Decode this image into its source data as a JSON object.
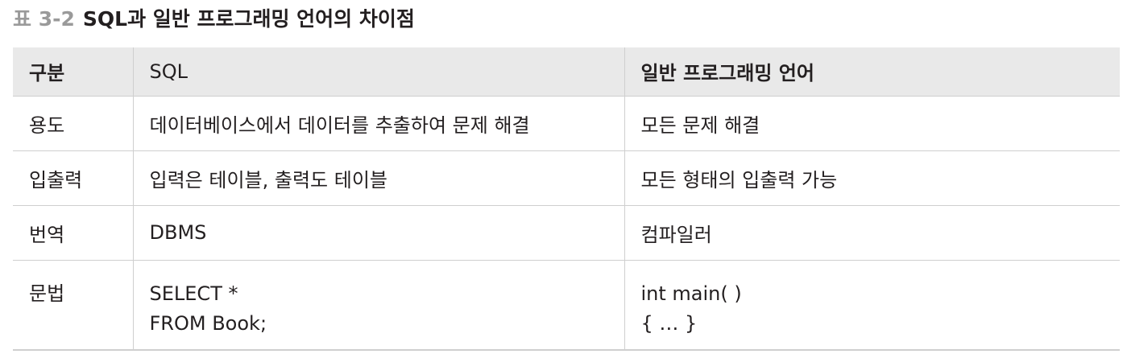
{
  "caption": {
    "number": "표 3-2",
    "title": "SQL과 일반 프로그래밍 언어의 차이점"
  },
  "table": {
    "headers": [
      "구분",
      "SQL",
      "일반 프로그래밍 언어"
    ],
    "rows": [
      {
        "label": "용도",
        "sql": "데이터베이스에서 데이터를 추출하여 문제 해결",
        "general": "모든 문제 해결"
      },
      {
        "label": "입출력",
        "sql": "입력은 테이블, 출력도 테이블",
        "general": "모든 형태의 입출력 가능"
      },
      {
        "label": "번역",
        "sql": "DBMS",
        "general": "컴파일러"
      },
      {
        "label": "문법",
        "sql": [
          "SELECT *",
          "FROM Book;"
        ],
        "general": [
          "int main( )",
          "{ … }"
        ]
      }
    ]
  }
}
